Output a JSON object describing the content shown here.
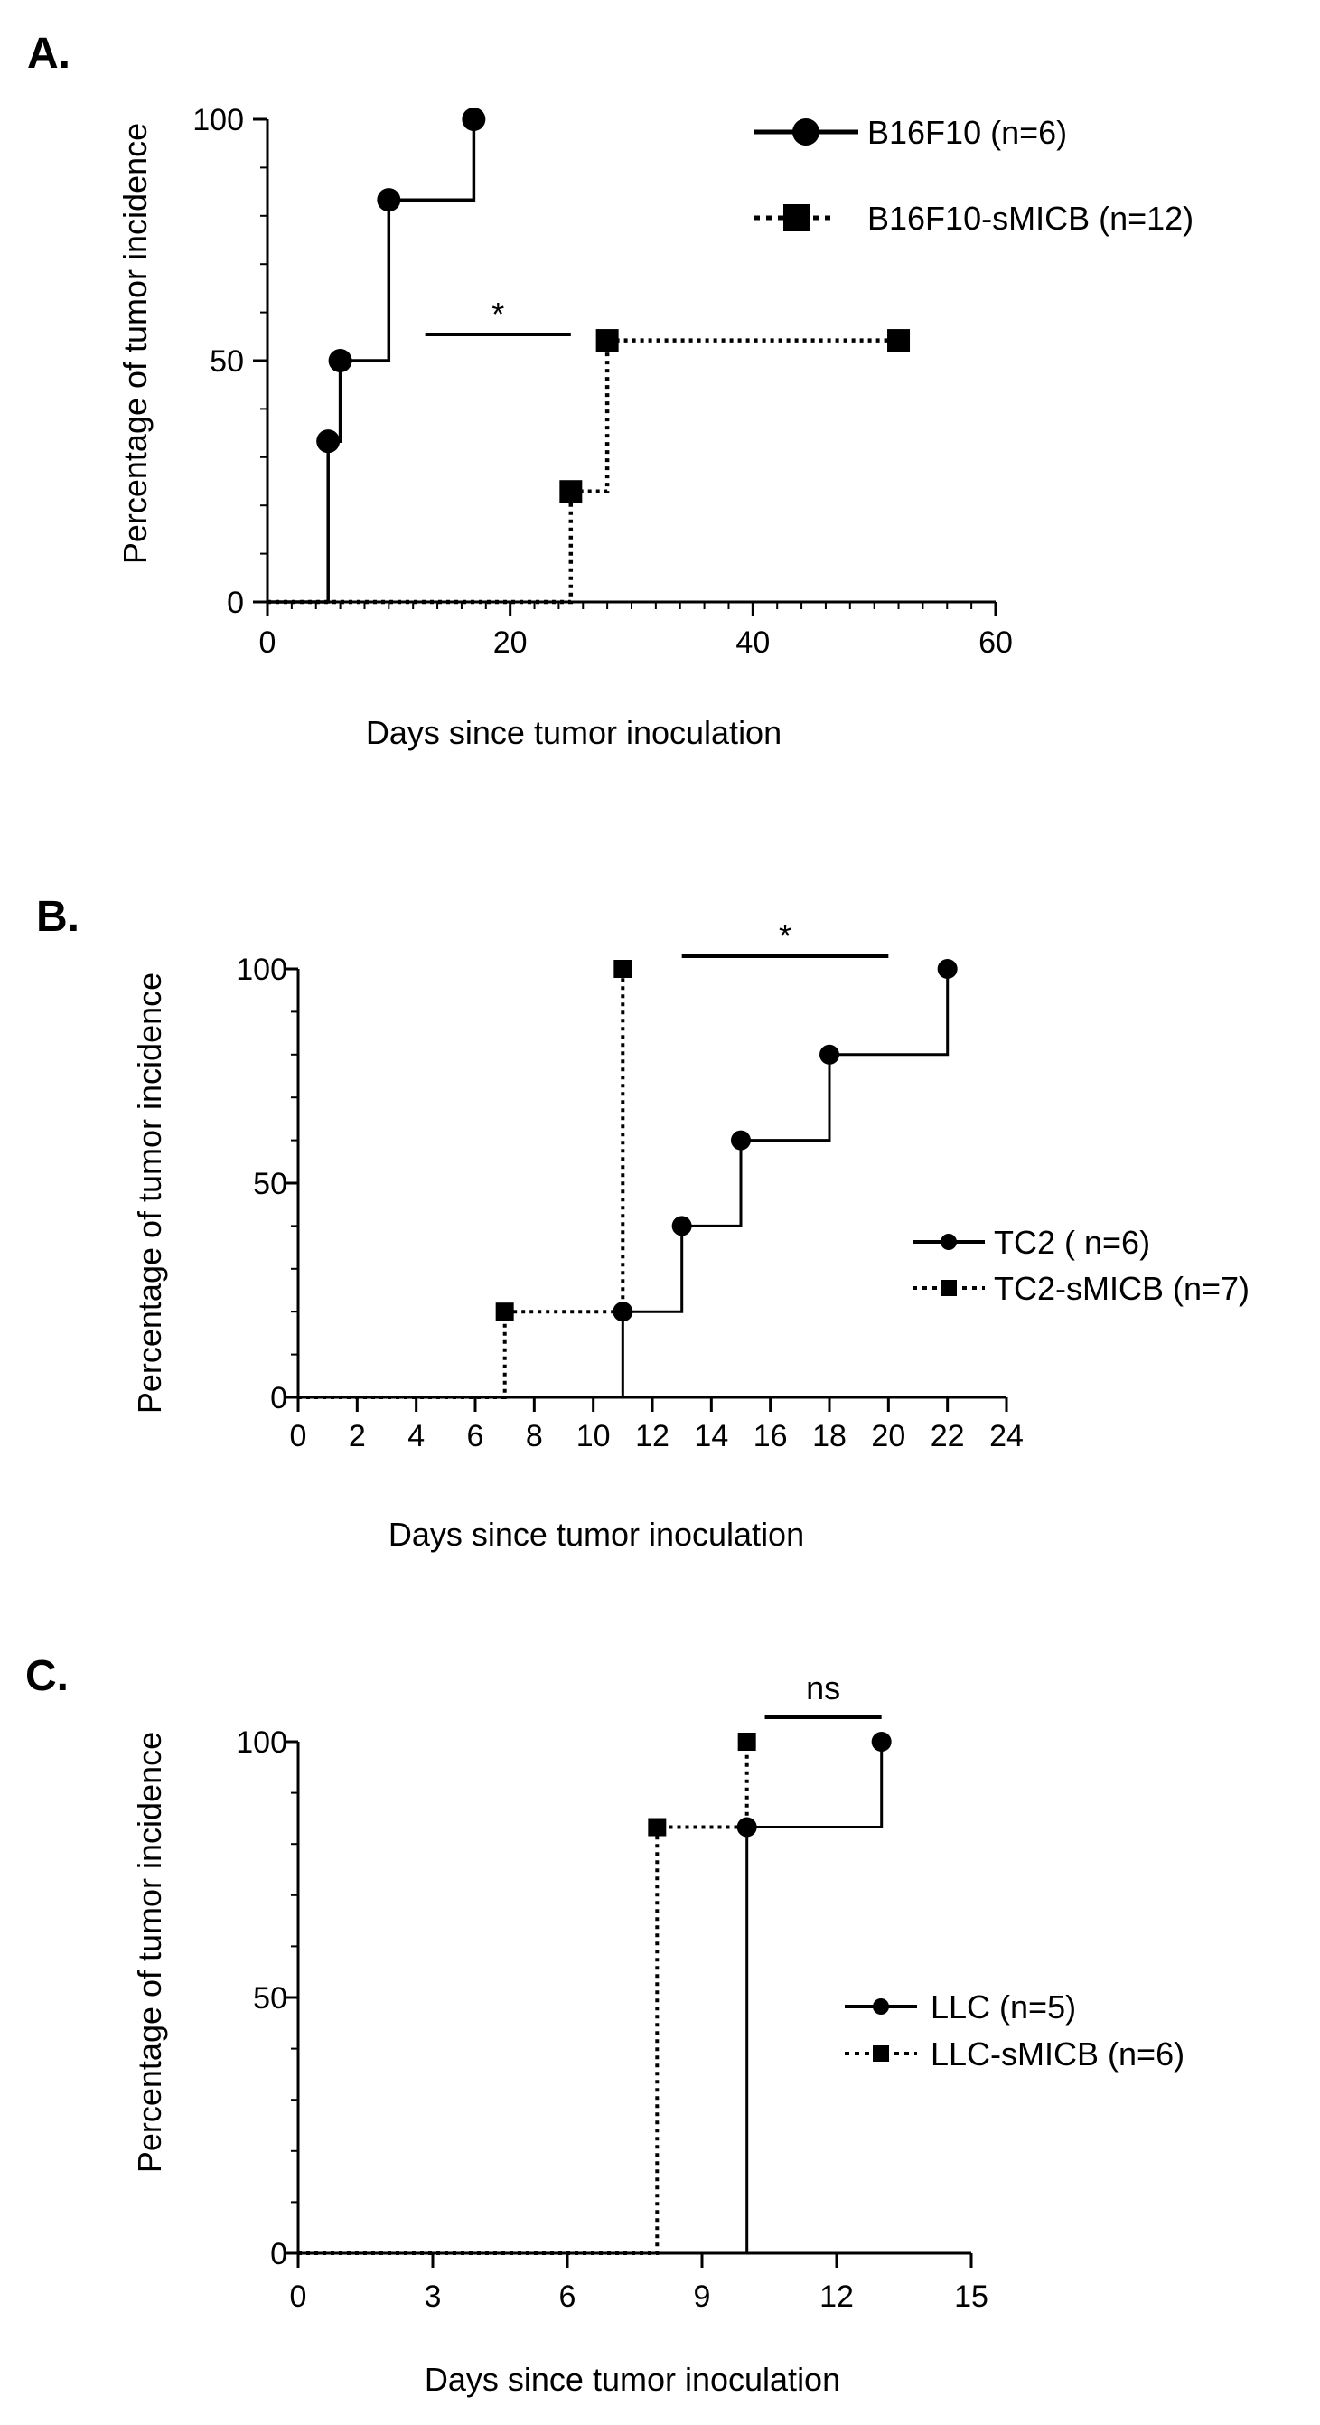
{
  "chart_data": [
    {
      "type": "line",
      "panel": "A.",
      "xlabel": "Days since tumor inoculation",
      "ylabel": "Percentage of tumor incidence",
      "xlim": [
        0,
        60
      ],
      "ylim": [
        0,
        100
      ],
      "xticks": [
        0,
        20,
        40,
        60
      ],
      "xtick_labels": [
        "0",
        "20",
        "40",
        "60"
      ],
      "yticks": [
        0,
        50,
        100
      ],
      "ytick_labels": [
        "0",
        "50",
        "100"
      ],
      "x_minor_step": 2,
      "y_minor_step": 10,
      "series": [
        {
          "name": "B16F10  (n=6)",
          "style": "solid",
          "marker": "circle",
          "steps": [
            [
              0,
              0
            ],
            [
              5,
              0
            ],
            [
              5,
              33.3
            ],
            [
              6,
              33.3
            ],
            [
              6,
              50
            ],
            [
              10,
              50
            ],
            [
              10,
              83.3
            ],
            [
              17,
              83.3
            ],
            [
              17,
              100
            ]
          ],
          "markers": [
            [
              5,
              33.3
            ],
            [
              6,
              50
            ],
            [
              10,
              83.3
            ],
            [
              17,
              100
            ]
          ]
        },
        {
          "name": "B16F10-sMICB  (n=12)",
          "style": "dotted",
          "marker": "square",
          "steps": [
            [
              0,
              0
            ],
            [
              25,
              0
            ],
            [
              25,
              22.9
            ],
            [
              28,
              22.9
            ],
            [
              28,
              54.2
            ],
            [
              52,
              54.2
            ]
          ],
          "markers": [
            [
              25,
              22.9
            ],
            [
              28,
              54.2
            ],
            [
              52,
              54.2
            ]
          ]
        }
      ],
      "significance": {
        "label": "*",
        "x": [
          13,
          25
        ],
        "y": 55
      }
    },
    {
      "type": "line",
      "panel": "B.",
      "xlabel": "Days since tumor inoculation",
      "ylabel": "Percentage of tumor incidence",
      "xlim": [
        0,
        24
      ],
      "ylim": [
        0,
        100
      ],
      "xticks": [
        0,
        2,
        4,
        6,
        8,
        10,
        12,
        14,
        16,
        18,
        20,
        22,
        24
      ],
      "xtick_labels": [
        "0",
        "2",
        "4",
        "6",
        "8",
        "10",
        "12",
        "14",
        "16",
        "18",
        "20",
        "22",
        "24"
      ],
      "yticks": [
        0,
        50,
        100
      ],
      "ytick_labels": [
        "0",
        "50",
        "100"
      ],
      "x_minor_step": 0,
      "y_minor_step": 10,
      "series": [
        {
          "name": "TC2  ( n=6)",
          "style": "solid",
          "marker": "circle",
          "steps": [
            [
              0,
              0
            ],
            [
              11,
              0
            ],
            [
              11,
              20
            ],
            [
              13,
              20
            ],
            [
              13,
              40
            ],
            [
              15,
              40
            ],
            [
              15,
              60
            ],
            [
              18,
              60
            ],
            [
              18,
              80
            ],
            [
              22,
              80
            ],
            [
              22,
              100
            ]
          ],
          "markers": [
            [
              11,
              20
            ],
            [
              13,
              40
            ],
            [
              15,
              60
            ],
            [
              18,
              80
            ],
            [
              22,
              100
            ]
          ]
        },
        {
          "name": "TC2-sMICB  (n=7)",
          "style": "dotted",
          "marker": "square",
          "steps": [
            [
              0,
              0
            ],
            [
              7,
              0
            ],
            [
              7,
              20
            ],
            [
              11,
              20
            ],
            [
              11,
              100
            ]
          ],
          "markers": [
            [
              7,
              20
            ],
            [
              11,
              100
            ]
          ]
        }
      ],
      "significance": {
        "label": "*",
        "x": [
          13,
          20
        ],
        "y": 100
      }
    },
    {
      "type": "line",
      "panel": "C.",
      "xlabel": "Days since tumor inoculation",
      "ylabel": "Percentage of tumor incidence",
      "xlim": [
        0,
        15
      ],
      "ylim": [
        0,
        100
      ],
      "xticks": [
        0,
        3,
        6,
        9,
        12,
        15
      ],
      "xtick_labels": [
        "0",
        "3",
        "6",
        "9",
        "12",
        "15"
      ],
      "yticks": [
        0,
        50,
        100
      ],
      "ytick_labels": [
        "0",
        "50",
        "100"
      ],
      "x_minor_step": 0,
      "y_minor_step": 10,
      "series": [
        {
          "name": "LLC  (n=5)",
          "style": "solid",
          "marker": "circle",
          "steps": [
            [
              0,
              0
            ],
            [
              10,
              0
            ],
            [
              10,
              83.3
            ],
            [
              13,
              83.3
            ],
            [
              13,
              100
            ]
          ],
          "markers": [
            [
              10,
              83.3
            ],
            [
              13,
              100
            ]
          ]
        },
        {
          "name": "LLC-sMICB  (n=6)",
          "style": "dotted",
          "marker": "square",
          "steps": [
            [
              0,
              0
            ],
            [
              8,
              0
            ],
            [
              8,
              83.3
            ],
            [
              10,
              83.3
            ],
            [
              10,
              100
            ]
          ],
          "markers": [
            [
              8,
              83.3
            ],
            [
              10,
              100
            ]
          ]
        }
      ],
      "significance": {
        "label": "ns",
        "x": [
          10.4,
          13
        ],
        "y": 113
      }
    }
  ]
}
